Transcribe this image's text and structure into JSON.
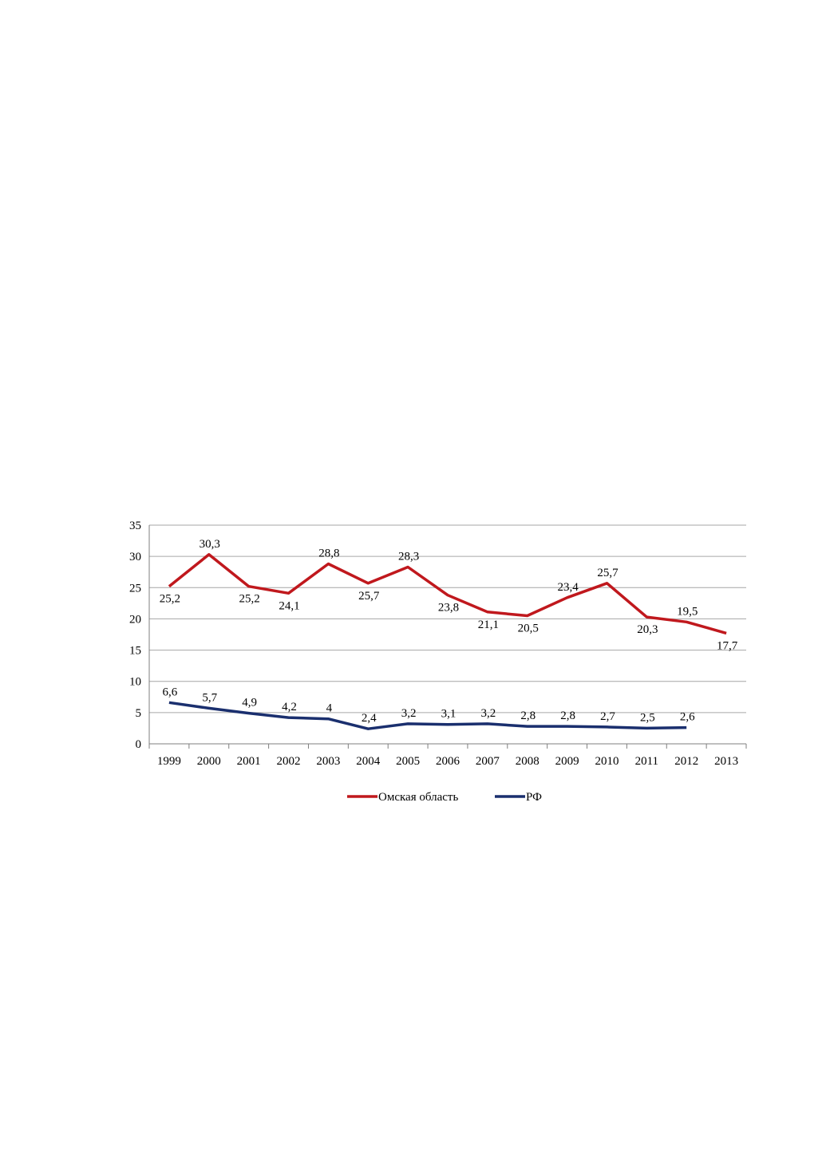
{
  "chart_data": {
    "type": "line",
    "categories": [
      "1999",
      "2000",
      "2001",
      "2002",
      "2003",
      "2004",
      "2005",
      "2006",
      "2007",
      "2008",
      "2009",
      "2010",
      "2011",
      "2012",
      "2013"
    ],
    "ylim": [
      0,
      35
    ],
    "yticks": [
      "0",
      "5",
      "10",
      "15",
      "20",
      "25",
      "30",
      "35"
    ],
    "grid": true,
    "legend_position": "bottom",
    "series": [
      {
        "name": "Омская область",
        "color": "#c0181d",
        "values": [
          25.2,
          30.3,
          25.2,
          24.1,
          28.8,
          25.7,
          28.3,
          23.8,
          21.1,
          20.5,
          23.4,
          25.7,
          20.3,
          19.5,
          17.7
        ],
        "labels": [
          "25,2",
          "30,3",
          "25,2",
          "24,1",
          "28,8",
          "25,7",
          "28,3",
          "23,8",
          "21,1",
          "20,5",
          "23,4",
          "25,7",
          "20,3",
          "19,5",
          "17,7"
        ]
      },
      {
        "name": "РФ",
        "color": "#1a2f6e",
        "values": [
          6.6,
          5.7,
          4.9,
          4.2,
          4.0,
          2.4,
          3.2,
          3.1,
          3.2,
          2.8,
          2.8,
          2.7,
          2.5,
          2.6,
          null
        ],
        "labels": [
          "6,6",
          "5,7",
          "4,9",
          "4,2",
          "4",
          "2,4",
          "3,2",
          "3,1",
          "3,2",
          "2,8",
          "2,8",
          "2,7",
          "2,5",
          "2,6",
          ""
        ]
      }
    ]
  }
}
